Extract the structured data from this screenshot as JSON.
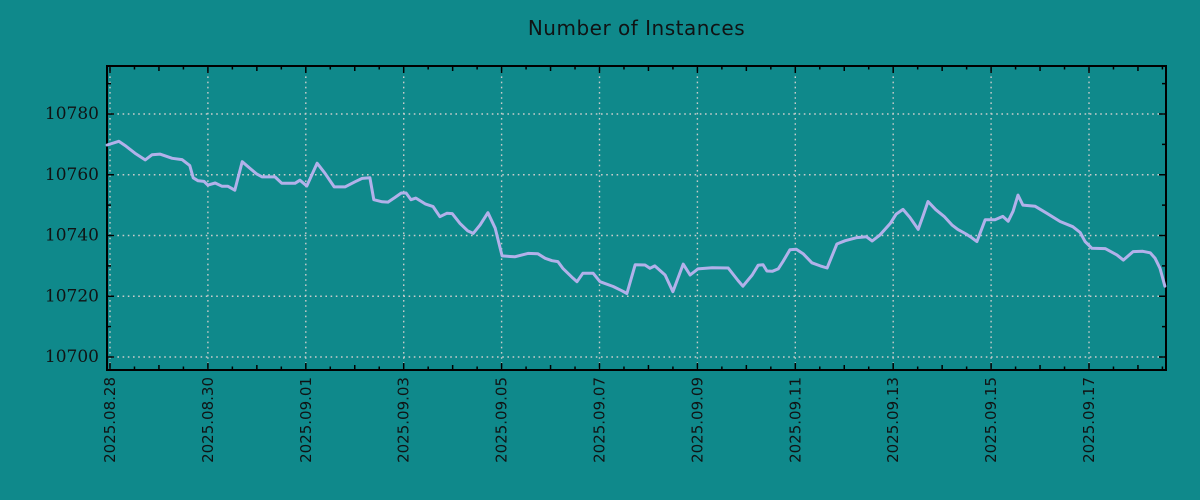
{
  "page": {
    "background_color": "#0F898B",
    "text_color": "#101314"
  },
  "chart_data": {
    "type": "line",
    "title": "Number of Instances",
    "xlabel": "",
    "ylabel": "",
    "grid": "dotted",
    "legend_position": "none",
    "ylim": [
      10695.7,
      10795.8
    ],
    "xlim_days": [
      -0.06,
      21.57
    ],
    "x_axis_epoch": "2025.08.28",
    "x_minor_tick_interval_days": 0.5,
    "y_minor_tick_interval": 10,
    "y_ticks": [
      10700,
      10720,
      10740,
      10760,
      10780
    ],
    "x_ticks": [
      {
        "t": 0,
        "label": "2025.08.28"
      },
      {
        "t": 2,
        "label": "2025.08.30"
      },
      {
        "t": 4,
        "label": "2025.09.01"
      },
      {
        "t": 6,
        "label": "2025.09.03"
      },
      {
        "t": 8,
        "label": "2025.09.05"
      },
      {
        "t": 10,
        "label": "2025.09.07"
      },
      {
        "t": 12,
        "label": "2025.09.09"
      },
      {
        "t": 14,
        "label": "2025.09.11"
      },
      {
        "t": 16,
        "label": "2025.09.13"
      },
      {
        "t": 18,
        "label": "2025.09.15"
      },
      {
        "t": 20,
        "label": "2025.09.17"
      }
    ],
    "colors": {
      "background": "#0F898B",
      "line": "#B2B1EA",
      "grid": "#C8CCCB",
      "axis": "#000000",
      "tick_text": "#101314"
    },
    "series": [
      {
        "name": "instances",
        "color": "#B2B1EA",
        "points": [
          [
            -0.06,
            10769.8
          ],
          [
            0.18,
            10771.0
          ],
          [
            0.31,
            10769.6
          ],
          [
            0.51,
            10767.1
          ],
          [
            0.72,
            10764.9
          ],
          [
            0.86,
            10766.6
          ],
          [
            1.02,
            10766.8
          ],
          [
            1.27,
            10765.4
          ],
          [
            1.47,
            10765.0
          ],
          [
            1.63,
            10763.0
          ],
          [
            1.7,
            10759.0
          ],
          [
            1.8,
            10758.0
          ],
          [
            1.92,
            10757.8
          ],
          [
            2.0,
            10756.6
          ],
          [
            2.15,
            10757.3
          ],
          [
            2.29,
            10756.2
          ],
          [
            2.41,
            10756.2
          ],
          [
            2.55,
            10754.9
          ],
          [
            2.7,
            10764.3
          ],
          [
            2.86,
            10762.1
          ],
          [
            3.0,
            10760.2
          ],
          [
            3.11,
            10759.3
          ],
          [
            3.37,
            10759.3
          ],
          [
            3.51,
            10757.2
          ],
          [
            3.78,
            10757.2
          ],
          [
            3.88,
            10758.2
          ],
          [
            4.02,
            10756.3
          ],
          [
            4.23,
            10763.8
          ],
          [
            4.39,
            10760.5
          ],
          [
            4.58,
            10756.0
          ],
          [
            4.8,
            10756.0
          ],
          [
            5.01,
            10757.7
          ],
          [
            5.15,
            10758.8
          ],
          [
            5.31,
            10759.0
          ],
          [
            5.39,
            10751.8
          ],
          [
            5.56,
            10751.1
          ],
          [
            5.68,
            10751.0
          ],
          [
            5.82,
            10752.5
          ],
          [
            5.95,
            10754.0
          ],
          [
            6.05,
            10754.0
          ],
          [
            6.15,
            10751.8
          ],
          [
            6.25,
            10752.3
          ],
          [
            6.44,
            10750.4
          ],
          [
            6.6,
            10749.5
          ],
          [
            6.74,
            10746.2
          ],
          [
            6.88,
            10747.3
          ],
          [
            6.99,
            10747.2
          ],
          [
            7.15,
            10744.0
          ],
          [
            7.31,
            10741.5
          ],
          [
            7.42,
            10740.7
          ],
          [
            7.56,
            10743.5
          ],
          [
            7.72,
            10747.5
          ],
          [
            7.87,
            10742.4
          ],
          [
            8.01,
            10733.3
          ],
          [
            8.27,
            10733.0
          ],
          [
            8.54,
            10734.1
          ],
          [
            8.74,
            10734.0
          ],
          [
            8.89,
            10732.5
          ],
          [
            9.03,
            10731.7
          ],
          [
            9.15,
            10731.4
          ],
          [
            9.25,
            10729.2
          ],
          [
            9.46,
            10725.9
          ],
          [
            9.54,
            10724.8
          ],
          [
            9.66,
            10727.6
          ],
          [
            9.87,
            10727.6
          ],
          [
            10.01,
            10724.8
          ],
          [
            10.28,
            10723.2
          ],
          [
            10.46,
            10721.8
          ],
          [
            10.56,
            10720.9
          ],
          [
            10.73,
            10730.4
          ],
          [
            10.93,
            10730.3
          ],
          [
            11.03,
            10729.2
          ],
          [
            11.13,
            10730.0
          ],
          [
            11.34,
            10727.0
          ],
          [
            11.5,
            10721.5
          ],
          [
            11.71,
            10730.6
          ],
          [
            11.85,
            10727.0
          ],
          [
            12.01,
            10729.0
          ],
          [
            12.3,
            10729.4
          ],
          [
            12.63,
            10729.3
          ],
          [
            12.83,
            10725.2
          ],
          [
            12.93,
            10723.3
          ],
          [
            13.12,
            10727.0
          ],
          [
            13.24,
            10730.2
          ],
          [
            13.34,
            10730.4
          ],
          [
            13.42,
            10728.3
          ],
          [
            13.53,
            10728.2
          ],
          [
            13.65,
            10729.0
          ],
          [
            13.75,
            10731.5
          ],
          [
            13.89,
            10735.3
          ],
          [
            14.02,
            10735.5
          ],
          [
            14.16,
            10734.0
          ],
          [
            14.34,
            10731.0
          ],
          [
            14.51,
            10730.0
          ],
          [
            14.65,
            10729.3
          ],
          [
            14.85,
            10737.2
          ],
          [
            15.02,
            10738.3
          ],
          [
            15.26,
            10739.3
          ],
          [
            15.45,
            10739.6
          ],
          [
            15.57,
            10738.2
          ],
          [
            15.73,
            10740.2
          ],
          [
            15.94,
            10744.0
          ],
          [
            16.06,
            10747.0
          ],
          [
            16.2,
            10748.6
          ],
          [
            16.34,
            10746.0
          ],
          [
            16.51,
            10742.0
          ],
          [
            16.61,
            10746.5
          ],
          [
            16.71,
            10751.2
          ],
          [
            16.87,
            10748.5
          ],
          [
            17.04,
            10746.3
          ],
          [
            17.2,
            10743.5
          ],
          [
            17.32,
            10742.0
          ],
          [
            17.49,
            10740.5
          ],
          [
            17.61,
            10739.2
          ],
          [
            17.71,
            10738.0
          ],
          [
            17.88,
            10745.2
          ],
          [
            18.08,
            10745.2
          ],
          [
            18.24,
            10746.3
          ],
          [
            18.35,
            10744.7
          ],
          [
            18.45,
            10748.0
          ],
          [
            18.55,
            10753.3
          ],
          [
            18.65,
            10750.0
          ],
          [
            18.9,
            10749.6
          ],
          [
            19.14,
            10747.3
          ],
          [
            19.41,
            10744.6
          ],
          [
            19.67,
            10742.9
          ],
          [
            19.82,
            10741.0
          ],
          [
            19.92,
            10738.0
          ],
          [
            20.06,
            10735.8
          ],
          [
            20.33,
            10735.7
          ],
          [
            20.57,
            10733.6
          ],
          [
            20.7,
            10731.9
          ],
          [
            20.9,
            10734.7
          ],
          [
            21.1,
            10734.8
          ],
          [
            21.25,
            10734.3
          ],
          [
            21.35,
            10732.5
          ],
          [
            21.45,
            10729.2
          ],
          [
            21.55,
            10723.3
          ]
        ]
      }
    ]
  }
}
